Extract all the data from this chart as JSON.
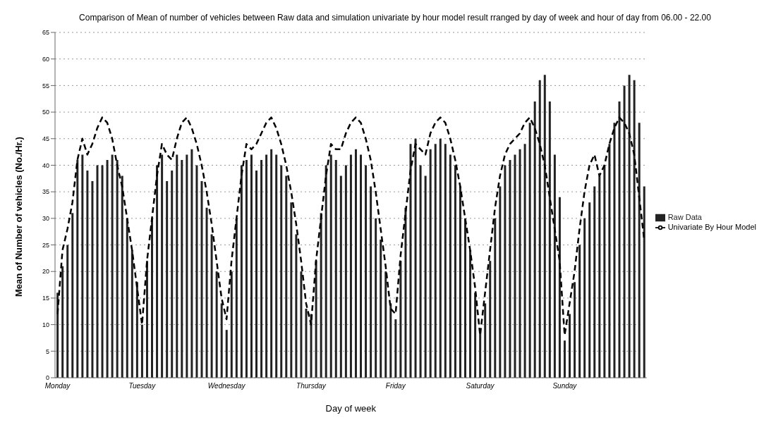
{
  "chart_data": {
    "type": "bar",
    "title": "Comparison of Mean of number of vehicles  between Raw data and simulation univariate by hour model result rranged by day of week and hour of day from 06.00 - 22.00",
    "xlabel": "Day of week",
    "ylabel": "Mean of Number of vehicles (No./Hr.)",
    "categories": [
      "Monday",
      null,
      null,
      null,
      null,
      null,
      null,
      null,
      null,
      null,
      null,
      null,
      null,
      null,
      null,
      null,
      null,
      "Tuesday",
      null,
      null,
      null,
      null,
      null,
      null,
      null,
      null,
      null,
      null,
      null,
      null,
      null,
      null,
      null,
      null,
      "Wednesday",
      null,
      null,
      null,
      null,
      null,
      null,
      null,
      null,
      null,
      null,
      null,
      null,
      null,
      null,
      null,
      null,
      "Thursday",
      null,
      null,
      null,
      null,
      null,
      null,
      null,
      null,
      null,
      null,
      null,
      null,
      null,
      null,
      null,
      null,
      "Friday",
      null,
      null,
      null,
      null,
      null,
      null,
      null,
      null,
      null,
      null,
      null,
      null,
      null,
      null,
      null,
      null,
      "Saturday",
      null,
      null,
      null,
      null,
      null,
      null,
      null,
      null,
      null,
      null,
      null,
      null,
      null,
      null,
      null,
      null,
      "Sunday",
      null,
      null,
      null,
      null,
      null,
      null,
      null,
      null,
      null,
      null,
      null,
      null,
      null,
      null,
      null,
      null
    ],
    "series": [
      {
        "name": "Raw Data",
        "color": "#222222",
        "values": [
          16,
          21,
          25,
          31,
          41,
          42,
          39,
          37,
          40,
          40,
          41,
          42,
          41,
          38,
          30,
          24,
          18,
          10,
          22,
          30,
          40,
          42,
          37,
          39,
          42,
          41,
          42,
          43,
          40,
          37,
          32,
          27,
          20,
          14,
          9,
          20,
          30,
          40,
          41,
          42,
          39,
          41,
          42,
          43,
          42,
          40,
          38,
          33,
          27,
          20,
          13,
          12,
          22,
          31,
          40,
          42,
          41,
          38,
          40,
          42,
          43,
          42,
          40,
          36,
          30,
          26,
          20,
          14,
          11,
          22,
          32,
          44,
          45,
          40,
          38,
          43,
          44,
          45,
          44,
          42,
          40,
          36,
          30,
          24,
          16,
          9,
          14,
          22,
          30,
          36,
          40,
          41,
          42,
          43,
          44,
          48,
          52,
          56,
          57,
          52,
          42,
          34,
          7,
          12,
          18,
          25,
          30,
          33,
          36,
          38,
          40,
          44,
          48,
          52,
          55,
          57,
          56,
          48,
          36
        ]
      },
      {
        "name": "Univariate By Hour Model",
        "type": "line",
        "color": "#000000",
        "line_style": "dashed",
        "values": [
          12,
          24,
          28,
          33,
          41,
          45,
          42,
          44,
          47,
          49,
          48,
          45,
          40,
          36,
          30,
          24,
          17,
          10,
          22,
          30,
          38,
          44,
          42,
          41,
          45,
          48,
          49,
          47,
          44,
          40,
          35,
          29,
          22,
          15,
          11,
          22,
          30,
          38,
          44,
          43,
          44,
          46,
          48,
          49,
          47,
          44,
          40,
          35,
          29,
          22,
          14,
          10,
          22,
          30,
          38,
          44,
          43,
          43,
          46,
          48,
          49,
          48,
          45,
          41,
          35,
          28,
          21,
          13,
          12,
          23,
          31,
          39,
          44,
          43,
          42,
          46,
          48,
          49,
          48,
          45,
          41,
          36,
          30,
          24,
          17,
          8,
          16,
          24,
          32,
          38,
          42,
          44,
          45,
          46,
          48,
          49,
          47,
          44,
          40,
          34,
          28,
          22,
          8,
          14,
          20,
          28,
          35,
          40,
          42,
          38,
          40,
          44,
          47,
          49,
          48,
          46,
          42,
          34,
          26
        ]
      }
    ],
    "ylim": [
      0,
      65
    ],
    "yticks": [
      0,
      5,
      10,
      15,
      20,
      25,
      30,
      35,
      40,
      45,
      50,
      55,
      60,
      65
    ],
    "grid": "y",
    "legend": "right",
    "marker": "none"
  }
}
